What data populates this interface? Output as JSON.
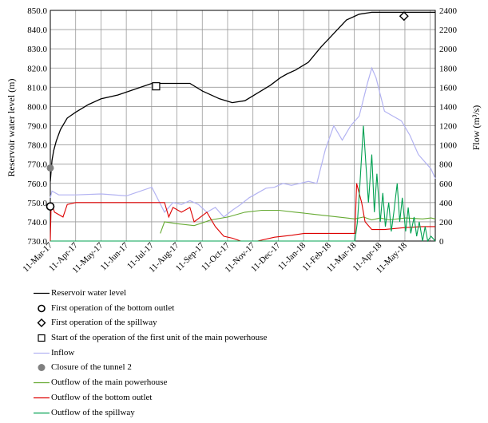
{
  "chart_data": {
    "type": "line",
    "title": "",
    "ylabel_left": "Reservoir water level (m)",
    "ylabel_right": "Flow (m³/s)",
    "xlabel": "",
    "ylim_left": [
      730,
      850
    ],
    "ylim_right": [
      0,
      2400
    ],
    "yticks_left": [
      "730.0",
      "740.0",
      "750.0",
      "760.0",
      "770.0",
      "780.0",
      "790.0",
      "800.0",
      "810.0",
      "820.0",
      "830.0",
      "840.0",
      "850.0"
    ],
    "yticks_right": [
      "0",
      "200",
      "400",
      "600",
      "800",
      "1000",
      "1200",
      "1400",
      "1600",
      "1800",
      "2000",
      "2200",
      "2400"
    ],
    "xticks": [
      "11-Mar-17",
      "11-Apr-17",
      "11-May-17",
      "11-Jun-17",
      "11-Jul-17",
      "11-Aug-17",
      "11-Sep-17",
      "11-Oct-17",
      "11-Nov-17",
      "11-Dec-17",
      "11-Jan-18",
      "11-Feb-18",
      "11-Mar-18",
      "11-Apr-18",
      "11-May-18"
    ],
    "xlim_days": [
      0,
      455
    ],
    "grid": true,
    "legend_position": "bottom",
    "legend": [
      "Reservoir water level",
      "First operation of the bottom outlet",
      "First operation of the spillway",
      "Start of the operation of the first unit of the main powerhouse",
      "Inflow",
      "Closure of the tunnel 2",
      "Outflow of the main powerhouse",
      "Outflow of the bottom outlet",
      "Outflow of the spillway"
    ],
    "colors": {
      "water_level": "#000000",
      "inflow": "#b3b3f2",
      "powerhouse": "#66aa33",
      "bottom_outlet": "#dd0000",
      "spillway": "#00a050",
      "closure_marker": "#808080"
    },
    "series": [
      {
        "axis": "left",
        "x_days": [
          0,
          1,
          2,
          4,
          7,
          12,
          20,
          30,
          45,
          60,
          80,
          100,
          120,
          135,
          150,
          165,
          180,
          200,
          215,
          230,
          245,
          260,
          272,
          280,
          290,
          305,
          320,
          335,
          350,
          365,
          380,
          395,
          410,
          420,
          430,
          440,
          450,
          455
        ],
        "values": [
          761,
          767,
          772,
          777,
          782,
          788,
          794,
          797,
          801,
          804,
          806,
          809,
          812,
          812,
          812,
          812,
          808,
          804,
          802,
          803,
          807,
          811,
          815,
          817,
          819,
          823,
          831,
          838,
          845,
          848,
          849,
          849,
          849,
          849,
          849,
          849,
          849,
          849
        ]
      },
      {
        "axis": "right",
        "x_days": [
          0,
          2,
          10,
          30,
          60,
          90,
          120,
          135,
          145,
          155,
          165,
          175,
          185,
          195,
          205,
          215,
          225,
          235,
          245,
          255,
          265,
          275,
          285,
          295,
          305,
          315,
          325,
          335,
          345,
          355,
          365,
          375,
          380,
          385,
          395,
          405,
          415,
          425,
          435,
          445,
          450,
          455
        ],
        "values": [
          450,
          520,
          480,
          480,
          490,
          470,
          560,
          300,
          400,
          380,
          420,
          380,
          300,
          350,
          250,
          320,
          380,
          450,
          500,
          550,
          560,
          600,
          580,
          600,
          620,
          600,
          950,
          1200,
          1050,
          1200,
          1300,
          1650,
          1800,
          1700,
          1350,
          1300,
          1250,
          1100,
          900,
          800,
          750,
          650
        ]
      },
      {
        "axis": "right",
        "x_days": [
          130,
          135,
          150,
          170,
          190,
          210,
          230,
          250,
          270,
          290,
          310,
          330,
          350,
          360,
          370,
          380,
          390,
          400,
          420,
          440,
          450,
          455
        ],
        "values": [
          80,
          200,
          180,
          160,
          220,
          250,
          300,
          320,
          320,
          300,
          280,
          260,
          240,
          230,
          250,
          220,
          240,
          220,
          240,
          230,
          240,
          230
        ]
      },
      {
        "axis": "right",
        "x_days": [
          0,
          1,
          5,
          15,
          20,
          30,
          60,
          90,
          120,
          135,
          140,
          145,
          155,
          165,
          170,
          185,
          195,
          205,
          215,
          225,
          235,
          245,
          265,
          285,
          300,
          320,
          350,
          360,
          362,
          368,
          372,
          380,
          395,
          420,
          440,
          455
        ],
        "values": [
          0,
          400,
          300,
          250,
          380,
          400,
          400,
          400,
          400,
          400,
          250,
          350,
          300,
          350,
          200,
          300,
          150,
          50,
          30,
          0,
          0,
          0,
          40,
          60,
          80,
          80,
          80,
          80,
          600,
          400,
          200,
          120,
          120,
          140,
          150,
          150
        ]
      },
      {
        "axis": "right",
        "x_days": [
          0,
          360,
          363,
          366,
          370,
          373,
          376,
          380,
          383,
          386,
          390,
          393,
          396,
          400,
          403,
          406,
          410,
          413,
          416,
          420,
          423,
          426,
          430,
          433,
          436,
          440,
          443,
          446,
          450,
          455
        ],
        "values": [
          0,
          0,
          200,
          600,
          1200,
          800,
          400,
          900,
          300,
          700,
          200,
          500,
          150,
          400,
          100,
          300,
          600,
          200,
          450,
          100,
          350,
          80,
          250,
          50,
          200,
          0,
          150,
          0,
          50,
          0
        ]
      }
    ],
    "markers": [
      {
        "name": "First operation of the bottom outlet",
        "x_day": 0,
        "axis": "left",
        "y": 748
      },
      {
        "name": "First operation of the spillway",
        "x_day": 418,
        "axis": "left",
        "y": 847
      },
      {
        "name": "Start of the operation of the first unit of the main powerhouse",
        "x_day": 125,
        "axis": "left",
        "y": 810.5
      },
      {
        "name": "Closure of the tunnel 2",
        "x_day": 0,
        "axis": "left",
        "y": 768
      }
    ]
  }
}
